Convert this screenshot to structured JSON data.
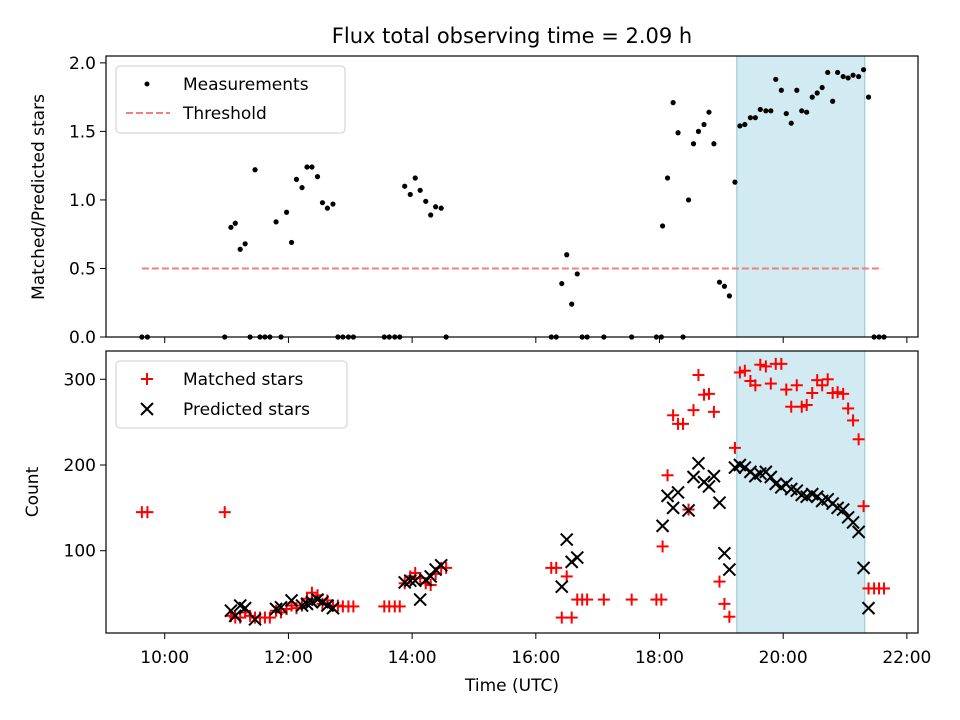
{
  "chart_data": {
    "type": "scatter",
    "title": "Flux total observing time = 2.09 h",
    "xlabel": "Time (UTC)",
    "x_ticks": [
      "10:00",
      "12:00",
      "14:00",
      "16:00",
      "18:00",
      "20:00",
      "22:00"
    ],
    "x_tick_hours": [
      10,
      12,
      14,
      16,
      18,
      20,
      22
    ],
    "x_range_hours": [
      9.05,
      22.18
    ],
    "highlight_span_hours": [
      19.25,
      21.32
    ],
    "colors": {
      "measure": "#000000",
      "threshold": "#f08080",
      "matched": "#ff0000",
      "predicted": "#000000",
      "span": "#add8e6"
    },
    "panels": [
      {
        "ylabel": "Matched/Predicted stars",
        "ylim": [
          0,
          2.05
        ],
        "yticks": [
          0.0,
          0.5,
          1.0,
          1.5,
          2.0
        ],
        "ytick_labels": [
          "0.0",
          "0.5",
          "1.0",
          "1.5",
          "2.0"
        ],
        "legend": [
          "Measurements",
          "Threshold"
        ],
        "threshold": {
          "value": 0.5,
          "x_range_hours": [
            9.63,
            21.6
          ]
        },
        "measurements": [
          [
            9.63,
            0
          ],
          [
            9.72,
            0
          ],
          [
            10.97,
            0
          ],
          [
            11.07,
            0.8
          ],
          [
            11.14,
            0.83
          ],
          [
            11.22,
            0.64
          ],
          [
            11.3,
            0.68
          ],
          [
            11.38,
            0
          ],
          [
            11.46,
            1.22
          ],
          [
            11.54,
            0
          ],
          [
            11.62,
            0
          ],
          [
            11.7,
            0
          ],
          [
            11.8,
            0.84
          ],
          [
            11.88,
            0
          ],
          [
            11.97,
            0.91
          ],
          [
            12.05,
            0.69
          ],
          [
            12.13,
            1.15
          ],
          [
            12.22,
            1.09
          ],
          [
            12.3,
            1.24
          ],
          [
            12.38,
            1.24
          ],
          [
            12.47,
            1.17
          ],
          [
            12.55,
            0.98
          ],
          [
            12.63,
            0.94
          ],
          [
            12.72,
            0.97
          ],
          [
            12.8,
            0
          ],
          [
            12.88,
            0
          ],
          [
            12.97,
            0
          ],
          [
            13.05,
            0
          ],
          [
            13.55,
            0
          ],
          [
            13.63,
            0
          ],
          [
            13.72,
            0
          ],
          [
            13.8,
            0
          ],
          [
            13.88,
            1.1
          ],
          [
            13.97,
            1.04
          ],
          [
            14.05,
            1.16
          ],
          [
            14.13,
            1.07
          ],
          [
            14.22,
            0.99
          ],
          [
            14.3,
            0.89
          ],
          [
            14.38,
            0.95
          ],
          [
            14.47,
            0.94
          ],
          [
            14.55,
            0
          ],
          [
            16.25,
            0
          ],
          [
            16.33,
            0
          ],
          [
            16.42,
            0.39
          ],
          [
            16.5,
            0.6
          ],
          [
            16.58,
            0.24
          ],
          [
            16.67,
            0.46
          ],
          [
            16.75,
            0
          ],
          [
            16.83,
            0
          ],
          [
            17.1,
            0
          ],
          [
            17.55,
            0
          ],
          [
            17.95,
            0
          ],
          [
            18.03,
            0
          ],
          [
            18.05,
            0.81
          ],
          [
            18.13,
            1.16
          ],
          [
            18.22,
            1.71
          ],
          [
            18.3,
            1.49
          ],
          [
            18.38,
            0
          ],
          [
            18.47,
            1.0
          ],
          [
            18.55,
            1.41
          ],
          [
            18.63,
            1.5
          ],
          [
            18.72,
            1.55
          ],
          [
            18.8,
            1.64
          ],
          [
            18.88,
            1.41
          ],
          [
            18.97,
            0.4
          ],
          [
            19.05,
            0.37
          ],
          [
            19.13,
            0.3
          ],
          [
            19.22,
            1.13
          ],
          [
            19.3,
            1.54
          ],
          [
            19.38,
            1.55
          ],
          [
            19.47,
            1.6
          ],
          [
            19.55,
            1.6
          ],
          [
            19.63,
            1.66
          ],
          [
            19.72,
            1.65
          ],
          [
            19.8,
            1.65
          ],
          [
            19.88,
            1.88
          ],
          [
            19.97,
            1.8
          ],
          [
            20.05,
            1.63
          ],
          [
            20.13,
            1.56
          ],
          [
            20.22,
            1.8
          ],
          [
            20.3,
            1.65
          ],
          [
            20.38,
            1.64
          ],
          [
            20.47,
            1.75
          ],
          [
            20.55,
            1.78
          ],
          [
            20.63,
            1.82
          ],
          [
            20.72,
            1.93
          ],
          [
            20.8,
            1.72
          ],
          [
            20.88,
            1.93
          ],
          [
            20.97,
            1.9
          ],
          [
            21.05,
            1.89
          ],
          [
            21.13,
            1.91
          ],
          [
            21.22,
            1.9
          ],
          [
            21.3,
            1.95
          ],
          [
            21.38,
            1.75
          ],
          [
            21.47,
            0
          ],
          [
            21.55,
            0
          ],
          [
            21.63,
            0
          ]
        ]
      },
      {
        "ylabel": "Count",
        "ylim": [
          4,
          333
        ],
        "yticks": [
          100,
          200,
          300
        ],
        "ytick_labels": [
          "100",
          "200",
          "300"
        ],
        "legend": [
          "Matched stars",
          "Predicted stars"
        ],
        "matched": [
          [
            9.63,
            145
          ],
          [
            9.72,
            145
          ],
          [
            10.97,
            145
          ],
          [
            11.07,
            24
          ],
          [
            11.14,
            22
          ],
          [
            11.22,
            22
          ],
          [
            11.3,
            28
          ],
          [
            11.38,
            24
          ],
          [
            11.46,
            22
          ],
          [
            11.54,
            22
          ],
          [
            11.62,
            22
          ],
          [
            11.7,
            22
          ],
          [
            11.8,
            30
          ],
          [
            11.88,
            28
          ],
          [
            11.97,
            32
          ],
          [
            12.05,
            36
          ],
          [
            12.13,
            33
          ],
          [
            12.22,
            36
          ],
          [
            12.3,
            44
          ],
          [
            12.38,
            51
          ],
          [
            12.47,
            48
          ],
          [
            12.55,
            38
          ],
          [
            12.63,
            42
          ],
          [
            12.72,
            36
          ],
          [
            12.8,
            36
          ],
          [
            12.88,
            35
          ],
          [
            12.97,
            35
          ],
          [
            13.05,
            35
          ],
          [
            13.55,
            35
          ],
          [
            13.63,
            35
          ],
          [
            13.72,
            35
          ],
          [
            13.8,
            35
          ],
          [
            13.88,
            62
          ],
          [
            13.97,
            70
          ],
          [
            14.05,
            74
          ],
          [
            14.13,
            68
          ],
          [
            14.22,
            62
          ],
          [
            14.3,
            60
          ],
          [
            14.38,
            73
          ],
          [
            14.47,
            80
          ],
          [
            14.55,
            80
          ],
          [
            16.25,
            80
          ],
          [
            16.33,
            80
          ],
          [
            16.42,
            22
          ],
          [
            16.5,
            70
          ],
          [
            16.58,
            22
          ],
          [
            16.67,
            43
          ],
          [
            16.75,
            43
          ],
          [
            16.83,
            43
          ],
          [
            17.1,
            43
          ],
          [
            17.55,
            43
          ],
          [
            17.95,
            43
          ],
          [
            18.03,
            43
          ],
          [
            18.05,
            105
          ],
          [
            18.13,
            188
          ],
          [
            18.22,
            258
          ],
          [
            18.3,
            248
          ],
          [
            18.38,
            248
          ],
          [
            18.47,
            148
          ],
          [
            18.55,
            264
          ],
          [
            18.63,
            305
          ],
          [
            18.72,
            282
          ],
          [
            18.8,
            283
          ],
          [
            18.88,
            262
          ],
          [
            18.97,
            64
          ],
          [
            19.05,
            38
          ],
          [
            19.13,
            23
          ],
          [
            19.22,
            220
          ],
          [
            19.3,
            308
          ],
          [
            19.38,
            310
          ],
          [
            19.47,
            298
          ],
          [
            19.55,
            293
          ],
          [
            19.63,
            317
          ],
          [
            19.72,
            315
          ],
          [
            19.8,
            295
          ],
          [
            19.88,
            318
          ],
          [
            19.97,
            318
          ],
          [
            20.05,
            288
          ],
          [
            20.13,
            268
          ],
          [
            20.22,
            293
          ],
          [
            20.3,
            268
          ],
          [
            20.38,
            270
          ],
          [
            20.47,
            284
          ],
          [
            20.55,
            299
          ],
          [
            20.63,
            293
          ],
          [
            20.72,
            300
          ],
          [
            20.8,
            284
          ],
          [
            20.88,
            285
          ],
          [
            20.97,
            283
          ],
          [
            21.05,
            266
          ],
          [
            21.13,
            252
          ],
          [
            21.22,
            230
          ],
          [
            21.3,
            152
          ],
          [
            21.38,
            56
          ],
          [
            21.47,
            56
          ],
          [
            21.55,
            56
          ],
          [
            21.63,
            56
          ]
        ],
        "predicted": [
          [
            11.07,
            30
          ],
          [
            11.14,
            24
          ],
          [
            11.22,
            36
          ],
          [
            11.3,
            33
          ],
          [
            11.46,
            20
          ],
          [
            11.8,
            32
          ],
          [
            11.88,
            34
          ],
          [
            12.05,
            42
          ],
          [
            12.22,
            36
          ],
          [
            12.3,
            38
          ],
          [
            12.38,
            40
          ],
          [
            12.47,
            43
          ],
          [
            12.55,
            40
          ],
          [
            12.63,
            36
          ],
          [
            12.72,
            33
          ],
          [
            13.88,
            63
          ],
          [
            13.97,
            65
          ],
          [
            14.05,
            65
          ],
          [
            14.13,
            43
          ],
          [
            14.22,
            66
          ],
          [
            14.3,
            70
          ],
          [
            14.38,
            78
          ],
          [
            14.47,
            83
          ],
          [
            16.42,
            58
          ],
          [
            16.5,
            113
          ],
          [
            16.58,
            87
          ],
          [
            16.67,
            92
          ],
          [
            18.05,
            129
          ],
          [
            18.13,
            164
          ],
          [
            18.22,
            150
          ],
          [
            18.3,
            168
          ],
          [
            18.47,
            147
          ],
          [
            18.55,
            186
          ],
          [
            18.63,
            202
          ],
          [
            18.72,
            180
          ],
          [
            18.8,
            175
          ],
          [
            18.88,
            187
          ],
          [
            18.97,
            156
          ],
          [
            19.05,
            97
          ],
          [
            19.13,
            78
          ],
          [
            19.22,
            197
          ],
          [
            19.3,
            200
          ],
          [
            19.38,
            197
          ],
          [
            19.47,
            192
          ],
          [
            19.55,
            187
          ],
          [
            19.63,
            190
          ],
          [
            19.72,
            192
          ],
          [
            19.8,
            186
          ],
          [
            19.88,
            178
          ],
          [
            19.97,
            174
          ],
          [
            20.05,
            178
          ],
          [
            20.13,
            172
          ],
          [
            20.22,
            170
          ],
          [
            20.3,
            165
          ],
          [
            20.38,
            163
          ],
          [
            20.47,
            166
          ],
          [
            20.55,
            163
          ],
          [
            20.63,
            158
          ],
          [
            20.72,
            160
          ],
          [
            20.8,
            155
          ],
          [
            20.88,
            150
          ],
          [
            20.97,
            148
          ],
          [
            21.05,
            139
          ],
          [
            21.13,
            133
          ],
          [
            21.22,
            122
          ],
          [
            21.3,
            80
          ],
          [
            21.38,
            33
          ]
        ]
      }
    ]
  }
}
